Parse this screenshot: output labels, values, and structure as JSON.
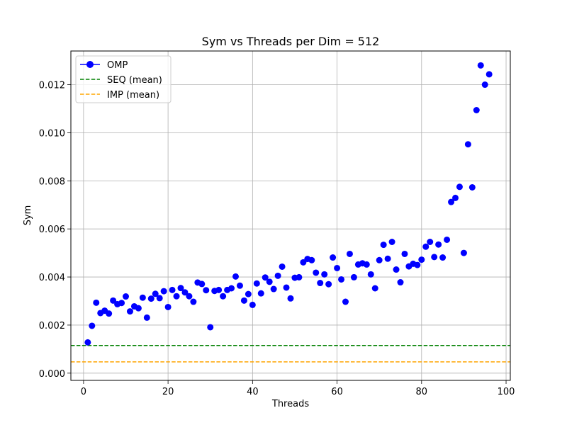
{
  "chart_data": {
    "type": "scatter",
    "title": "Sym vs Threads per Dim = 512",
    "xlabel": "Threads",
    "ylabel": "Sym",
    "xlim": [
      -3,
      101
    ],
    "ylim": [
      -0.0003,
      0.0134
    ],
    "xticks": [
      0,
      20,
      40,
      60,
      80,
      100
    ],
    "yticks": [
      0.0,
      0.002,
      0.004,
      0.006,
      0.008,
      0.01,
      0.012
    ],
    "ytick_labels": [
      "0.000",
      "0.002",
      "0.004",
      "0.006",
      "0.008",
      "0.010",
      "0.012"
    ],
    "grid": true,
    "legend_position": "top-left",
    "series": [
      {
        "name": "OMP",
        "kind": "markers",
        "color": "#0000ff",
        "x": [
          1,
          2,
          3,
          4,
          5,
          6,
          7,
          8,
          9,
          10,
          11,
          12,
          13,
          14,
          15,
          16,
          17,
          18,
          19,
          20,
          21,
          22,
          23,
          24,
          25,
          26,
          27,
          28,
          29,
          30,
          31,
          32,
          33,
          34,
          35,
          36,
          37,
          38,
          39,
          40,
          41,
          42,
          43,
          44,
          45,
          46,
          47,
          48,
          49,
          50,
          51,
          52,
          53,
          54,
          55,
          56,
          57,
          58,
          59,
          60,
          61,
          62,
          63,
          64,
          65,
          66,
          67,
          68,
          69,
          70,
          71,
          72,
          73,
          74,
          75,
          76,
          77,
          78,
          79,
          80,
          81,
          82,
          83,
          84,
          85,
          86,
          87,
          88,
          89,
          90,
          91,
          92,
          93,
          94,
          95,
          96
        ],
        "y": [
          0.00128,
          0.00197,
          0.00293,
          0.0025,
          0.0026,
          0.00248,
          0.00302,
          0.00287,
          0.00292,
          0.00319,
          0.00257,
          0.00278,
          0.0027,
          0.00314,
          0.00231,
          0.0031,
          0.0033,
          0.00312,
          0.00341,
          0.00275,
          0.00346,
          0.0032,
          0.00354,
          0.00336,
          0.0032,
          0.00297,
          0.00377,
          0.00371,
          0.00345,
          0.00191,
          0.00342,
          0.00346,
          0.0032,
          0.00346,
          0.00353,
          0.00402,
          0.00364,
          0.00302,
          0.00329,
          0.00284,
          0.00373,
          0.00332,
          0.00398,
          0.0038,
          0.0035,
          0.00405,
          0.00443,
          0.00356,
          0.00311,
          0.00397,
          0.00399,
          0.00461,
          0.00475,
          0.0047,
          0.00418,
          0.00375,
          0.00411,
          0.0037,
          0.00481,
          0.00437,
          0.0039,
          0.00297,
          0.00496,
          0.00399,
          0.00452,
          0.00457,
          0.00452,
          0.00411,
          0.00353,
          0.0047,
          0.00534,
          0.00476,
          0.00546,
          0.00431,
          0.00378,
          0.00496,
          0.00444,
          0.00455,
          0.0045,
          0.00472,
          0.00526,
          0.00546,
          0.00483,
          0.00535,
          0.00481,
          0.00555,
          0.00712,
          0.00729,
          0.00775,
          0.005,
          0.00952,
          0.00773,
          0.01094,
          0.0128,
          0.012,
          0.01243
        ]
      },
      {
        "name": "SEQ (mean)",
        "kind": "hline",
        "color": "#008000",
        "y": 0.00115
      },
      {
        "name": "IMP (mean)",
        "kind": "hline",
        "color": "#ffa500",
        "y": 0.00047
      }
    ]
  }
}
